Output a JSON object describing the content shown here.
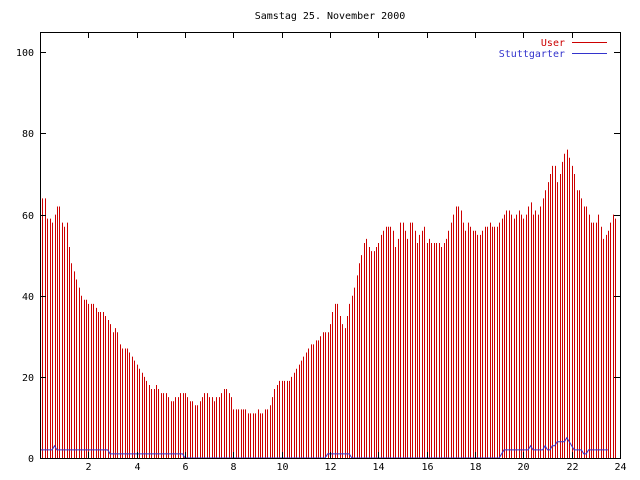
{
  "chart_data": {
    "type": "bar",
    "title": "Samstag 25. November 2000",
    "xlabel": "",
    "ylabel": "",
    "xlim": [
      0,
      24
    ],
    "ylim": [
      0,
      105
    ],
    "x_ticks": [
      2,
      4,
      6,
      8,
      10,
      12,
      14,
      16,
      18,
      20,
      22,
      24
    ],
    "y_ticks": [
      0,
      20,
      40,
      60,
      80,
      100
    ],
    "grid": false,
    "legend_position": "top-right",
    "x_step": 0.1,
    "series": [
      {
        "name": "User",
        "color": "#cc0000",
        "style": "impulses",
        "values": [
          62,
          64,
          64,
          59,
          59,
          58,
          60,
          62,
          62,
          58,
          57,
          58,
          52,
          48,
          46,
          44,
          42,
          40,
          39,
          39,
          38,
          38,
          38,
          37,
          36,
          36,
          36,
          35,
          34,
          33,
          31,
          32,
          31,
          28,
          27,
          27,
          27,
          26,
          25,
          24,
          23,
          22,
          21,
          20,
          19,
          18,
          17,
          17,
          18,
          17,
          16,
          16,
          16,
          15,
          14,
          14,
          15,
          15,
          16,
          16,
          16,
          15,
          14,
          14,
          13,
          13,
          14,
          15,
          16,
          16,
          15,
          15,
          14,
          15,
          15,
          16,
          17,
          17,
          16,
          15,
          12,
          12,
          12,
          12,
          12,
          12,
          11,
          11,
          11,
          11,
          12,
          11,
          11,
          12,
          12,
          13,
          15,
          17,
          18,
          19,
          19,
          19,
          19,
          19,
          20,
          21,
          22,
          23,
          24,
          25,
          26,
          27,
          28,
          28,
          29,
          29,
          30,
          31,
          31,
          31,
          33,
          36,
          38,
          38,
          35,
          33,
          32,
          35,
          38,
          40,
          42,
          45,
          48,
          50,
          53,
          54,
          52,
          51,
          51,
          52,
          53,
          55,
          56,
          57,
          57,
          57,
          56,
          52,
          54,
          58,
          58,
          56,
          54,
          58,
          58,
          56,
          53,
          55,
          56,
          57,
          53,
          54,
          53,
          53,
          53,
          53,
          52,
          53,
          54,
          56,
          58,
          60,
          62,
          62,
          61,
          58,
          56,
          58,
          57,
          56,
          56,
          55,
          55,
          56,
          57,
          57,
          58,
          57,
          57,
          57,
          58,
          59,
          60,
          61,
          61,
          60,
          59,
          60,
          61,
          60,
          59,
          60,
          62,
          63,
          60,
          61,
          60,
          62,
          64,
          66,
          68,
          70,
          72,
          72,
          68,
          70,
          73,
          75,
          76,
          74,
          72,
          70,
          66,
          66,
          64,
          62,
          62,
          60,
          58,
          58,
          58,
          60,
          57,
          54,
          55,
          56,
          58,
          60,
          59
        ]
      },
      {
        "name": "Stuttgarter",
        "color": "#3333cc",
        "style": "line",
        "values": [
          2,
          2,
          2,
          2,
          2,
          2,
          3,
          2,
          2,
          2,
          2,
          2,
          2,
          2,
          2,
          2,
          2,
          2,
          2,
          2,
          2,
          2,
          2,
          2,
          2,
          2,
          2,
          2,
          2,
          1,
          1,
          1,
          1,
          1,
          1,
          1,
          1,
          1,
          1,
          1,
          1,
          1,
          1,
          1,
          1,
          1,
          1,
          1,
          1,
          1,
          1,
          1,
          1,
          1,
          1,
          1,
          1,
          1,
          1,
          1,
          0,
          0,
          0,
          0,
          0,
          0,
          0,
          0,
          0,
          0,
          0,
          0,
          0,
          0,
          0,
          0,
          0,
          0,
          0,
          0,
          0,
          0,
          0,
          0,
          0,
          0,
          0,
          0,
          0,
          0,
          0,
          0,
          0,
          0,
          0,
          0,
          0,
          0,
          0,
          0,
          0,
          0,
          0,
          0,
          0,
          0,
          0,
          0,
          0,
          0,
          0,
          0,
          0,
          0,
          0,
          0,
          0,
          0,
          0,
          1,
          1,
          1,
          1,
          1,
          1,
          1,
          1,
          1,
          1,
          0,
          0,
          0,
          0,
          0,
          0,
          0,
          0,
          0,
          0,
          0,
          0,
          0,
          0,
          0,
          0,
          0,
          0,
          0,
          0,
          0,
          0,
          0,
          0,
          0,
          0,
          0,
          0,
          0,
          0,
          0,
          0,
          0,
          0,
          0,
          0,
          0,
          0,
          0,
          0,
          0,
          0,
          0,
          0,
          0,
          0,
          0,
          0,
          0,
          0,
          0,
          0,
          0,
          0,
          0,
          0,
          0,
          0,
          0,
          0,
          0,
          0,
          1,
          2,
          2,
          2,
          2,
          2,
          2,
          2,
          2,
          2,
          2,
          2,
          3,
          2,
          2,
          2,
          2,
          2,
          3,
          2,
          2,
          3,
          3,
          4,
          4,
          4,
          4,
          5,
          4,
          3,
          2,
          2,
          2,
          2,
          1,
          1,
          2,
          2,
          2,
          2,
          2,
          2,
          2,
          2,
          2
        ]
      }
    ]
  }
}
